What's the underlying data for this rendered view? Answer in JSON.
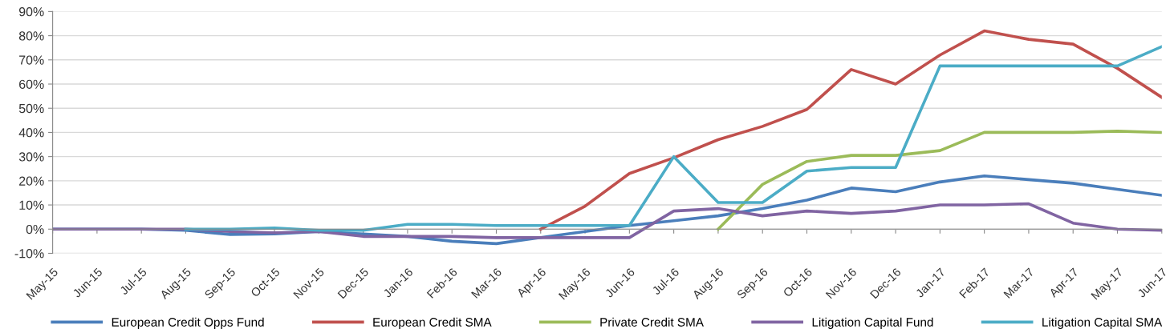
{
  "chart_data": {
    "type": "line",
    "categories": [
      "May-15",
      "Jun-15",
      "Jul-15",
      "Aug-15",
      "Sep-15",
      "Oct-15",
      "Nov-15",
      "Dec-15",
      "Jan-16",
      "Feb-16",
      "Mar-16",
      "Apr-16",
      "May-16",
      "Jun-16",
      "Jul-16",
      "Aug-16",
      "Sep-16",
      "Oct-16",
      "Nov-16",
      "Dec-16",
      "Jan-17",
      "Feb-17",
      "Mar-17",
      "Apr-17",
      "May-17",
      "Jun-17"
    ],
    "series": [
      {
        "name": "European Credit Opps Fund",
        "color": "#4a7ebb",
        "values": [
          0,
          0,
          0,
          -0.5,
          -2.2,
          -2,
          -1,
          -2,
          -3,
          -5,
          -6,
          -3.5,
          -1,
          1.5,
          3.5,
          5.5,
          8.5,
          12,
          17,
          15.5,
          19.5,
          22,
          20.5,
          19,
          16.5,
          14
        ]
      },
      {
        "name": "European Credit SMA",
        "color": "#c0504d",
        "values": [
          null,
          null,
          null,
          null,
          null,
          null,
          null,
          null,
          null,
          null,
          null,
          0,
          9.5,
          23,
          29.5,
          37,
          42.5,
          49.5,
          66,
          60,
          72,
          82,
          78.5,
          76.5,
          66.5,
          54.5
        ]
      },
      {
        "name": "Private Credit SMA",
        "color": "#9bbb59",
        "values": [
          null,
          null,
          null,
          null,
          null,
          null,
          null,
          null,
          null,
          null,
          null,
          null,
          null,
          null,
          null,
          0,
          18.5,
          28,
          30.5,
          30.5,
          32.5,
          40,
          40,
          40,
          40.5,
          40
        ]
      },
      {
        "name": "Litigation Capital Fund",
        "color": "#8064a2",
        "values": [
          0,
          0,
          0,
          0,
          -1,
          -1.5,
          -1,
          -3,
          -3,
          -3,
          -3.5,
          -3.5,
          -3.5,
          -3.5,
          7.5,
          8.5,
          5.5,
          7.5,
          6.5,
          7.5,
          10,
          10,
          10.5,
          2.5,
          0,
          -0.5
        ]
      },
      {
        "name": "Litigation Capital SMA",
        "color": "#4bacc6",
        "values": [
          null,
          null,
          null,
          0,
          0,
          0.5,
          -0.5,
          -0.5,
          2,
          2,
          1.5,
          1.5,
          1.5,
          1.5,
          30,
          11,
          11,
          24,
          25.5,
          25.5,
          67.5,
          67.5,
          67.5,
          67.5,
          67.5,
          75.5
        ]
      }
    ],
    "ylim": [
      -10,
      90
    ],
    "yticks": [
      {
        "value": -10,
        "label": "-10%"
      },
      {
        "value": 0,
        "label": "0%"
      },
      {
        "value": 10,
        "label": "10%"
      },
      {
        "value": 20,
        "label": "20%"
      },
      {
        "value": 30,
        "label": "30%"
      },
      {
        "value": 40,
        "label": "40%"
      },
      {
        "value": 50,
        "label": "50%"
      },
      {
        "value": 60,
        "label": "60%"
      },
      {
        "value": 70,
        "label": "70%"
      },
      {
        "value": 80,
        "label": "80%"
      },
      {
        "value": 90,
        "label": "90%"
      }
    ],
    "grid": "y",
    "legend": "bottom",
    "marker": "none",
    "line_style": "solid"
  }
}
